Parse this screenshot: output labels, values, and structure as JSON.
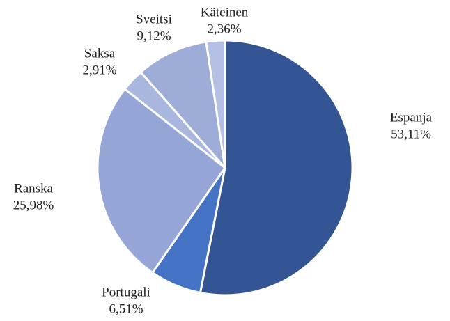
{
  "chart_data": {
    "type": "pie",
    "categories": [
      "Espanja",
      "Portugali",
      "Ranska",
      "Saksa",
      "Sveitsi",
      "Käteinen"
    ],
    "values": [
      53.11,
      6.51,
      25.98,
      2.91,
      9.12,
      2.36
    ],
    "value_labels": [
      "53,11%",
      "6,51%",
      "25,98%",
      "2,91%",
      "9,12%",
      "2,36%"
    ],
    "colors": [
      "#335593",
      "#4472c4",
      "#95a6d6",
      "#a9b7de",
      "#9eadd8",
      "#b4c1e4"
    ]
  }
}
